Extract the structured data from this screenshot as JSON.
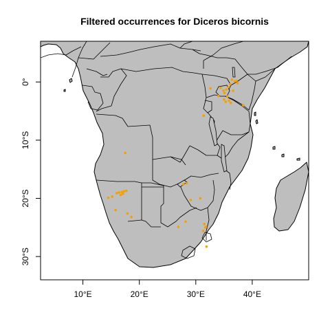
{
  "title": "Filtered occurrences for Diceros bicornis",
  "colors": {
    "land": "#bebebe",
    "border": "#000000",
    "points": "#f5a000",
    "background": "#ffffff"
  },
  "map": {
    "xlim": [
      2.5,
      50
    ],
    "ylim": [
      -34,
      7
    ],
    "x_ticks": [
      {
        "value": 10,
        "label": "10°E"
      },
      {
        "value": 20,
        "label": "20°E"
      },
      {
        "value": 30,
        "label": "30°E"
      },
      {
        "value": 40,
        "label": "40°E"
      }
    ],
    "y_ticks": [
      {
        "value": 0,
        "label": "0°"
      },
      {
        "value": -10,
        "label": "10°S"
      },
      {
        "value": -20,
        "label": "20°S"
      },
      {
        "value": -30,
        "label": "30°S"
      }
    ],
    "occurrences": [
      [
        36.4,
        0.4
      ],
      [
        36.9,
        0.1
      ],
      [
        37.4,
        -0.2
      ],
      [
        36.1,
        -0.4
      ],
      [
        35.8,
        -0.9
      ],
      [
        35.4,
        -1.3
      ],
      [
        34.9,
        -1.5
      ],
      [
        35.1,
        -1.9
      ],
      [
        35.6,
        -2.5
      ],
      [
        35.9,
        -3.2
      ],
      [
        35.3,
        -3.4
      ],
      [
        36.2,
        -3.6
      ],
      [
        37.2,
        0.2
      ],
      [
        34.4,
        -1.0
      ],
      [
        32.6,
        -1.1
      ],
      [
        38.4,
        -4.0
      ],
      [
        35.0,
        -3.0
      ],
      [
        34.0,
        -2.4
      ],
      [
        31.4,
        -5.8
      ],
      [
        36.6,
        -1.5
      ],
      [
        17.5,
        -12.2
      ],
      [
        14.5,
        -19.9
      ],
      [
        15.2,
        -19.7
      ],
      [
        16.0,
        -19.1
      ],
      [
        16.4,
        -19.0
      ],
      [
        16.9,
        -18.9
      ],
      [
        17.3,
        -18.8
      ],
      [
        17.7,
        -18.7
      ],
      [
        16.7,
        -19.4
      ],
      [
        17.1,
        -19.2
      ],
      [
        17.9,
        -22.6
      ],
      [
        18.6,
        -23.2
      ],
      [
        15.8,
        -22.0
      ],
      [
        27.8,
        -17.6
      ],
      [
        28.4,
        -17.4
      ],
      [
        30.8,
        -20.0
      ],
      [
        29.1,
        -20.3
      ],
      [
        31.5,
        -24.4
      ],
      [
        31.8,
        -24.9
      ],
      [
        31.3,
        -25.6
      ],
      [
        31.7,
        -25.0
      ],
      [
        26.9,
        -24.9
      ],
      [
        28.2,
        -24.0
      ],
      [
        31.9,
        -28.3
      ]
    ]
  }
}
